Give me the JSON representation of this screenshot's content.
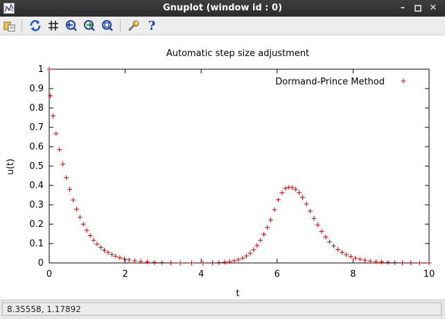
{
  "window": {
    "title": "Gnuplot (window id : 0)"
  },
  "toolbar": {
    "icons": [
      "copy-print-icon",
      "replot-icon",
      "grid-icon",
      "zoom-previous-icon",
      "zoom-next-icon",
      "autoscale-icon",
      "options-wrench-icon",
      "help-icon"
    ]
  },
  "status": {
    "coordinates": "8.35558,  1.17892"
  },
  "colors": {
    "series": "#cc0000",
    "titlebar": "#333333"
  },
  "chart_data": {
    "type": "scatter",
    "title": "Automatic step size adjustment",
    "xlabel": "t",
    "ylabel": "u(t)",
    "xlim": [
      0,
      10
    ],
    "ylim": [
      0,
      1
    ],
    "xticks": [
      "0",
      "2",
      "4",
      "6",
      "8",
      "10"
    ],
    "yticks": [
      "0",
      "0.1",
      "0.2",
      "0.3",
      "0.4",
      "0.5",
      "0.6",
      "0.7",
      "0.8",
      "0.9",
      "1"
    ],
    "grid": false,
    "legend_position": "top-right",
    "series": [
      {
        "name": "Dormand-Prince Method",
        "marker": "+",
        "x": [
          0,
          0.03,
          0.1,
          0.18,
          0.27,
          0.36,
          0.45,
          0.54,
          0.63,
          0.72,
          0.81,
          0.9,
          0.99,
          1.08,
          1.17,
          1.26,
          1.36,
          1.45,
          1.55,
          1.65,
          1.75,
          1.86,
          1.98,
          2.1,
          2.25,
          2.41,
          2.58,
          2.77,
          2.97,
          3.2,
          3.45,
          3.75,
          4.05,
          4.3,
          4.47,
          4.62,
          4.75,
          4.87,
          4.98,
          5.09,
          5.19,
          5.29,
          5.38,
          5.47,
          5.56,
          5.65,
          5.74,
          5.83,
          5.93,
          6.03,
          6.13,
          6.22,
          6.31,
          6.4,
          6.49,
          6.58,
          6.67,
          6.77,
          6.87,
          6.97,
          7.07,
          7.17,
          7.28,
          7.38,
          7.49,
          7.6,
          7.71,
          7.82,
          7.94,
          8.06,
          8.18,
          8.31,
          8.45,
          8.6,
          8.75,
          8.92,
          9.1,
          9.3,
          9.52,
          9.75,
          10.0
        ],
        "y": [
          1.0,
          0.863,
          0.759,
          0.668,
          0.585,
          0.51,
          0.44,
          0.38,
          0.325,
          0.278,
          0.236,
          0.2,
          0.168,
          0.141,
          0.117,
          0.097,
          0.08,
          0.066,
          0.054,
          0.044,
          0.035,
          0.027,
          0.021,
          0.016,
          0.011,
          0.008,
          0.005,
          0.003,
          0.002,
          0.001,
          0.0,
          0.0,
          0.0,
          0.001,
          0.002,
          0.004,
          0.007,
          0.011,
          0.017,
          0.025,
          0.036,
          0.05,
          0.068,
          0.09,
          0.117,
          0.148,
          0.183,
          0.222,
          0.275,
          0.326,
          0.362,
          0.385,
          0.39,
          0.389,
          0.38,
          0.363,
          0.338,
          0.304,
          0.268,
          0.23,
          0.196,
          0.163,
          0.134,
          0.109,
          0.088,
          0.07,
          0.055,
          0.043,
          0.033,
          0.025,
          0.019,
          0.014,
          0.01,
          0.007,
          0.005,
          0.003,
          0.002,
          0.001,
          0.001,
          0.0,
          0.0
        ]
      }
    ]
  }
}
